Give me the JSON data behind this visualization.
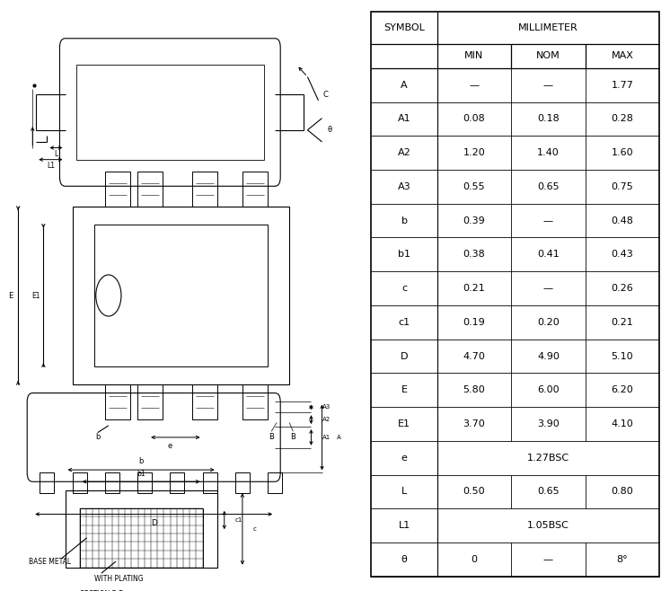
{
  "table_headers": [
    "SYMBOL",
    "MIN",
    "NOM",
    "MAX"
  ],
  "millimeter_header": "MILLIMETER",
  "rows": [
    [
      "A",
      "—",
      "—",
      "1.77"
    ],
    [
      "A1",
      "0.08",
      "0.18",
      "0.28"
    ],
    [
      "A2",
      "1.20",
      "1.40",
      "1.60"
    ],
    [
      "A3",
      "0.55",
      "0.65",
      "0.75"
    ],
    [
      "b",
      "0.39",
      "—",
      "0.48"
    ],
    [
      "b1",
      "0.38",
      "0.41",
      "0.43"
    ],
    [
      "c",
      "0.21",
      "—",
      "0.26"
    ],
    [
      "c1",
      "0.19",
      "0.20",
      "0.21"
    ],
    [
      "D",
      "4.70",
      "4.90",
      "5.10"
    ],
    [
      "E",
      "5.80",
      "6.00",
      "6.20"
    ],
    [
      "E1",
      "3.70",
      "3.90",
      "4.10"
    ],
    [
      "e",
      "1.27BSC",
      null,
      null
    ],
    [
      "L",
      "0.50",
      "0.65",
      "0.80"
    ],
    [
      "L1",
      "1.05BSC",
      null,
      null
    ],
    [
      "θ",
      "0",
      "—",
      "8°"
    ]
  ],
  "line_color": "#000000",
  "bg_color": "#ffffff",
  "text_color": "#000000"
}
